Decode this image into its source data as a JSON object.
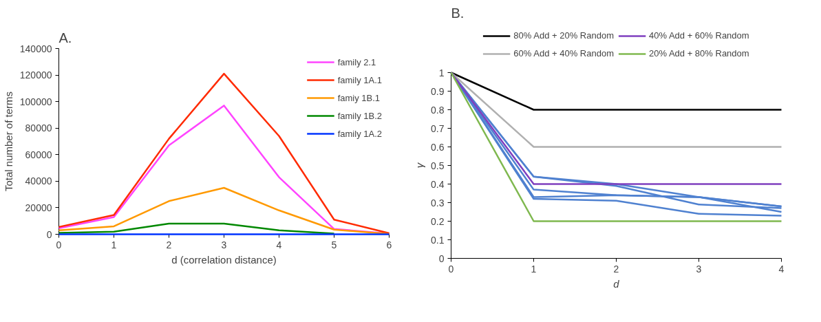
{
  "chart_data": [
    {
      "type": "line",
      "title": "A.",
      "xlabel": "d (correlation distance)",
      "ylabel": "Total number of terms",
      "x": [
        0,
        1,
        2,
        3,
        4,
        5,
        6
      ],
      "xlim": [
        0,
        6
      ],
      "xticks": [
        0,
        1,
        2,
        3,
        4,
        5,
        6
      ],
      "ylim": [
        0,
        140000
      ],
      "yticks": [
        0,
        20000,
        40000,
        60000,
        80000,
        100000,
        120000,
        140000
      ],
      "grid": false,
      "legend": "top right",
      "series": [
        {
          "name": "family 2.1",
          "color": "#ff44ff",
          "values": [
            4500,
            13000,
            67000,
            97000,
            43000,
            4000,
            500
          ]
        },
        {
          "name": "family 1A.1",
          "color": "#ff2a00",
          "values": [
            5500,
            14500,
            72000,
            121000,
            74000,
            11000,
            800
          ]
        },
        {
          "name": "famiy 1B.1",
          "color": "#ff9900",
          "values": [
            3000,
            6000,
            25000,
            35000,
            18000,
            3500,
            300
          ]
        },
        {
          "name": "family 1B.2",
          "color": "#008800",
          "values": [
            1000,
            2000,
            8000,
            8000,
            3000,
            500,
            null
          ]
        },
        {
          "name": "family 1A.2",
          "color": "#0033ff",
          "values": [
            0,
            0,
            0,
            0,
            0,
            0,
            0
          ]
        }
      ]
    },
    {
      "type": "line",
      "title": "B.",
      "xlabel": "d",
      "ylabel": "γ",
      "x": [
        0,
        1,
        2,
        3,
        4
      ],
      "xlim": [
        0,
        4
      ],
      "xticks": [
        0,
        1,
        2,
        3,
        4
      ],
      "ylim": [
        0,
        1
      ],
      "yticks": [
        0,
        {
          "value": 0.1,
          "label": "0.1"
        },
        {
          "value": 0.2,
          "label": "0.2"
        },
        {
          "value": 0.3,
          "label": "0.3"
        },
        {
          "value": 0.4,
          "label": "0.4"
        },
        {
          "value": 0.5,
          "label": "0.5"
        },
        {
          "value": 0.6,
          "label": "0.6"
        },
        {
          "value": 0.7,
          "label": "0.7"
        },
        {
          "value": 0.8,
          "label": "0.8"
        },
        {
          "value": 0.9,
          "label": "0.9"
        },
        1
      ],
      "grid": false,
      "legend": "top",
      "series": [
        {
          "color": "#4f81d0",
          "values": [
            1,
            0.44,
            0.4,
            0.33,
            0.28
          ]
        },
        {
          "color": "#4f81d0",
          "values": [
            1,
            0.44,
            0.39,
            0.29,
            0.27
          ]
        },
        {
          "color": "#4f81d0",
          "values": [
            1,
            0.37,
            0.34,
            0.33,
            0.25
          ]
        },
        {
          "color": "#4f81d0",
          "values": [
            1,
            0.33,
            0.34,
            0.33,
            0.28
          ]
        },
        {
          "color": "#4f81d0",
          "values": [
            1,
            0.32,
            0.31,
            0.24,
            0.23
          ]
        },
        {
          "name": "80% Add + 20% Random",
          "color": "#000000",
          "values": [
            1,
            0.8,
            0.8,
            0.8,
            0.8
          ]
        },
        {
          "name": "60% Add + 40% Random",
          "color": "#b0b0b0",
          "values": [
            1,
            0.6,
            0.6,
            0.6,
            0.6
          ]
        },
        {
          "name": "40% Add + 60% Random",
          "color": "#7f3fbf",
          "values": [
            1,
            0.4,
            0.4,
            0.4,
            0.4
          ]
        },
        {
          "name": "20% Add + 80% Random",
          "color": "#7fb84f",
          "values": [
            1,
            0.2,
            0.2,
            0.2,
            0.2
          ]
        }
      ]
    }
  ]
}
